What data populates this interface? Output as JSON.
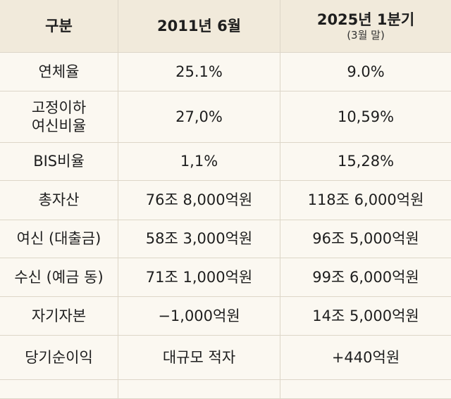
{
  "table": {
    "header": [
      "구분",
      "2011년 6월",
      "2025년 1분기"
    ],
    "header_note": "(3월 말)",
    "rows": [
      [
        "연체율",
        "25.1%",
        "9.0%"
      ],
      [
        "고정이하\n여신비율",
        "27,0%",
        "10,59%"
      ],
      [
        "BIS비율",
        "1,1%",
        "15,28%"
      ],
      [
        "총자산",
        "76조 8,000억원",
        "118조 6,000억원"
      ],
      [
        "여신 (대출금)",
        "58조 3,000억원",
        "96조 5,000억원"
      ],
      [
        "수신 (예금 동)",
        "71조 1,000억원",
        "99조 6,000억원"
      ],
      [
        "자기자본",
        "−1,000억원",
        "14조 5,000억원"
      ],
      [
        "당기순이익",
        "대규모 적자",
        "+440억원"
      ]
    ]
  }
}
